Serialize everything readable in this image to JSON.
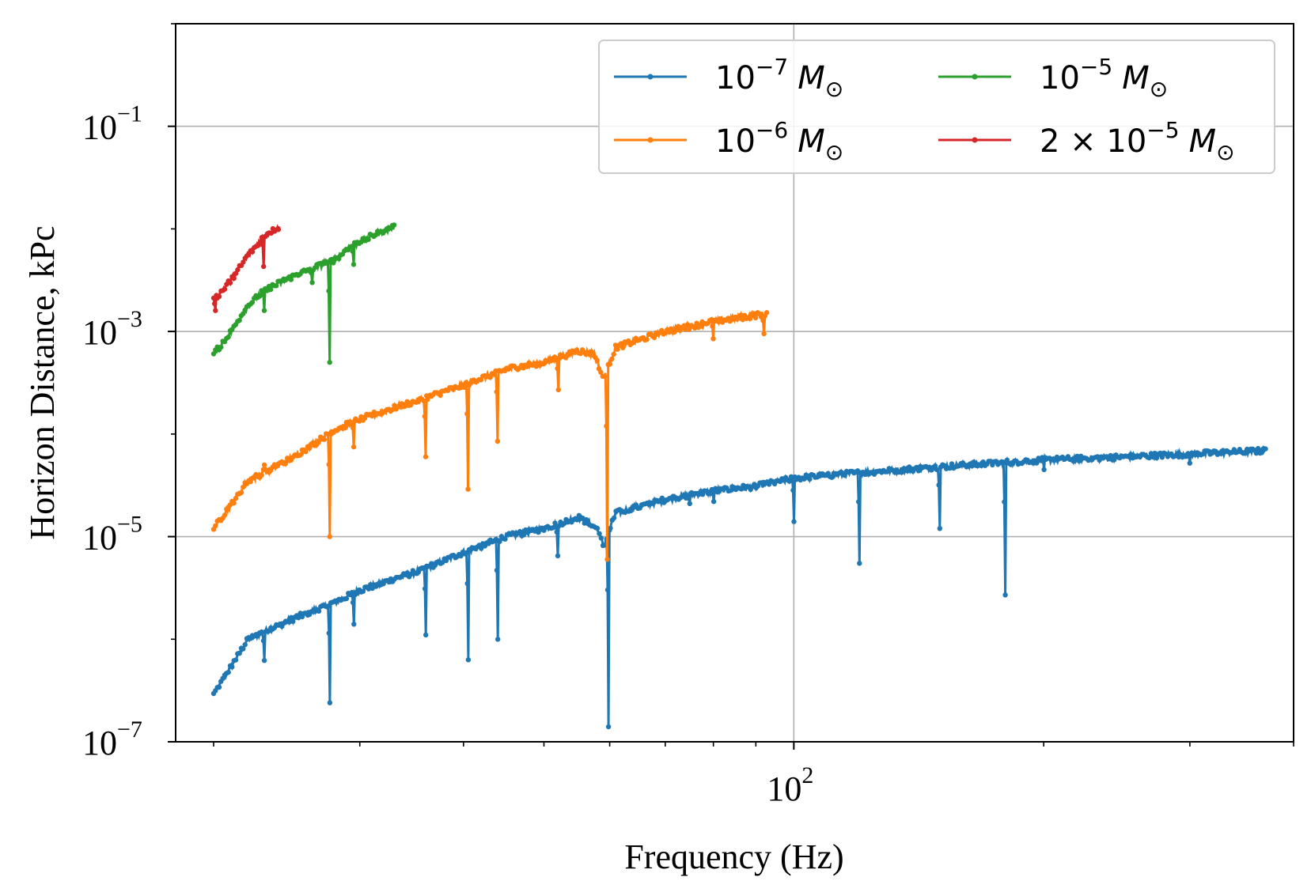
{
  "chart_data": {
    "type": "line",
    "xlabel": "Frequency (Hz)",
    "ylabel": "Horizon Distance, kPc",
    "x_scale": "log",
    "y_scale": "log",
    "xlim": [
      18,
      400
    ],
    "ylim": [
      1e-07,
      1
    ],
    "grid": true,
    "legend_position": "top-right",
    "legend_columns": 2,
    "x_major_ticks": [
      {
        "value": 100,
        "base": "10",
        "exp": "2"
      }
    ],
    "y_major_ticks": [
      {
        "value": 1e-07,
        "base": "10",
        "exp": "−7"
      },
      {
        "value": 1e-05,
        "base": "10",
        "exp": "−5"
      },
      {
        "value": 0.001,
        "base": "10",
        "exp": "−3"
      },
      {
        "value": 0.1,
        "base": "10",
        "exp": "−1"
      }
    ],
    "series": [
      {
        "name": "10⁻⁷ M☉",
        "legend": {
          "pre": "10",
          "exp": "−7",
          "unit": "M",
          "sub": "⊙"
        },
        "color": "#1f77b4",
        "f_start": 20,
        "f_end": 370,
        "points": [
          [
            20,
            2.9e-07
          ],
          [
            22,
            1e-06
          ],
          [
            25,
            1.6e-06
          ],
          [
            28,
            2.3e-06
          ],
          [
            30,
            3e-06
          ],
          [
            35,
            4.5e-06
          ],
          [
            40,
            7e-06
          ],
          [
            45,
            1e-05
          ],
          [
            50,
            1.2e-05
          ],
          [
            55,
            1.55e-05
          ],
          [
            58,
            1.2e-05
          ],
          [
            59,
            8e-06
          ],
          [
            61,
            1.7e-05
          ],
          [
            70,
            2.3e-05
          ],
          [
            80,
            2.8e-05
          ],
          [
            90,
            3.1e-05
          ],
          [
            100,
            3.7e-05
          ],
          [
            120,
            4.2e-05
          ],
          [
            150,
            4.8e-05
          ],
          [
            200,
            5.6e-05
          ],
          [
            250,
            6e-05
          ],
          [
            300,
            6.4e-05
          ],
          [
            370,
            6.9e-05
          ]
        ],
        "dips": [
          [
            23,
            6.2e-07
          ],
          [
            27.6,
            2.4e-07
          ],
          [
            29.5,
            1.4e-06
          ],
          [
            36,
            1.1e-06
          ],
          [
            40.5,
            6.3e-07
          ],
          [
            44,
            1e-06
          ],
          [
            52,
            6.5e-06
          ],
          [
            59.8,
            1.4e-07
          ],
          [
            75,
            2.1e-05
          ],
          [
            80,
            2.2e-05
          ],
          [
            100,
            1.4e-05
          ],
          [
            120,
            5.5e-06
          ],
          [
            150,
            1.2e-05
          ],
          [
            180,
            2.7e-06
          ],
          [
            200,
            4.5e-05
          ],
          [
            300,
            5.2e-05
          ]
        ]
      },
      {
        "name": "10⁻⁶ M☉",
        "legend": {
          "pre": "10",
          "exp": "−6",
          "unit": "M",
          "sub": "⊙"
        },
        "color": "#ff7f0e",
        "f_start": 20,
        "f_end": 93,
        "points": [
          [
            20,
            1.2e-05
          ],
          [
            22,
            3.5e-05
          ],
          [
            25,
            6e-05
          ],
          [
            28,
            0.00011
          ],
          [
            30,
            0.00014
          ],
          [
            35,
            0.00021
          ],
          [
            40,
            0.0003
          ],
          [
            45,
            0.00043
          ],
          [
            50,
            0.0005
          ],
          [
            55,
            0.00065
          ],
          [
            57.5,
            0.0006
          ],
          [
            59,
            0.00035
          ],
          [
            61,
            0.0007
          ],
          [
            70,
            0.001
          ],
          [
            80,
            0.00125
          ],
          [
            93,
            0.0015
          ]
        ],
        "dips": [
          [
            23,
            5e-05
          ],
          [
            27.6,
            1e-05
          ],
          [
            29.5,
            7.5e-05
          ],
          [
            36,
            6e-05
          ],
          [
            40.5,
            2.9e-05
          ],
          [
            44,
            8.5e-05
          ],
          [
            52,
            0.00027
          ],
          [
            59.6,
            6e-06
          ],
          [
            80,
            0.00085
          ],
          [
            92,
            0.00095
          ]
        ]
      },
      {
        "name": "10⁻⁵ M☉",
        "legend": {
          "pre": "10",
          "exp": "−5",
          "unit": "M",
          "sub": "⊙"
        },
        "color": "#2ca02c",
        "f_start": 20,
        "f_end": 33,
        "points": [
          [
            20,
            0.0006
          ],
          [
            21,
            0.001
          ],
          [
            22,
            0.0018
          ],
          [
            23,
            0.0025
          ],
          [
            25,
            0.0035
          ],
          [
            27,
            0.0045
          ],
          [
            28,
            0.005
          ],
          [
            29,
            0.0065
          ],
          [
            30,
            0.0075
          ],
          [
            31,
            0.0085
          ],
          [
            33,
            0.0105
          ]
        ],
        "dips": [
          [
            23,
            0.0016
          ],
          [
            26.3,
            0.003
          ],
          [
            27.6,
            0.0005
          ],
          [
            29.5,
            0.0045
          ]
        ]
      },
      {
        "name": "2×10⁻⁵ M☉",
        "legend": {
          "pre": "2 × 10",
          "exp": "−5",
          "unit": "M",
          "sub": "⊙"
        },
        "color": "#d62728",
        "f_start": 20,
        "f_end": 24,
        "points": [
          [
            20,
            0.002
          ],
          [
            21,
            0.0032
          ],
          [
            22,
            0.0055
          ],
          [
            23,
            0.0085
          ],
          [
            24,
            0.0105
          ]
        ],
        "dips": [
          [
            20.1,
            0.0016
          ],
          [
            23,
            0.0043
          ]
        ]
      }
    ]
  }
}
